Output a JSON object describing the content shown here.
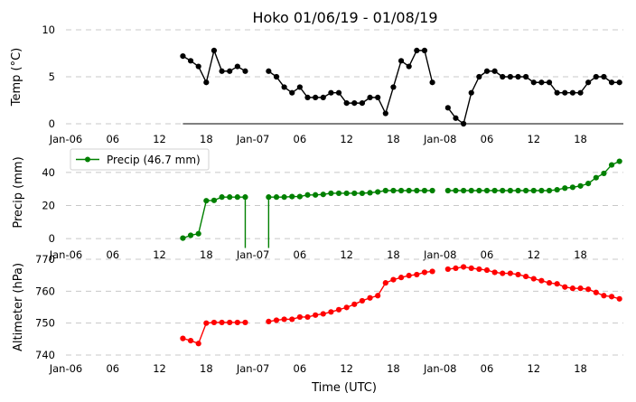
{
  "chart_data": {
    "title": "Hoko 01/06/19 - 01/08/19",
    "xlabel": "Time (UTC)",
    "x_ticks": [
      "Jan-06",
      "06",
      "12",
      "18",
      "Jan-07",
      "06",
      "12",
      "18",
      "Jan-08",
      "06",
      "12",
      "18"
    ],
    "x_tick_hours": [
      0,
      6,
      12,
      18,
      24,
      30,
      36,
      42,
      48,
      54,
      60,
      66
    ],
    "xlim_hours": [
      0,
      71.5
    ],
    "panels": [
      {
        "type": "line",
        "ylabel": "Temp (°C)",
        "ylim": [
          0,
          10
        ],
        "y_ticks": [
          0,
          5,
          10
        ],
        "color": "#000000",
        "grid": true,
        "series": [
          {
            "values": [
              [
                15,
                7.2
              ],
              [
                16,
                6.7
              ],
              [
                17,
                6.1
              ],
              [
                18,
                4.4
              ],
              [
                19,
                7.8
              ],
              [
                20,
                5.6
              ],
              [
                21,
                5.6
              ],
              [
                22,
                6.1
              ],
              [
                23,
                5.6
              ],
              [
                26,
                5.6
              ],
              [
                27,
                5.0
              ],
              [
                28,
                3.9
              ],
              [
                29,
                3.3
              ],
              [
                30,
                3.9
              ],
              [
                31,
                2.8
              ],
              [
                32,
                2.8
              ],
              [
                33,
                2.8
              ],
              [
                34,
                3.3
              ],
              [
                35,
                3.3
              ],
              [
                36,
                2.2
              ],
              [
                37,
                2.2
              ],
              [
                38,
                2.2
              ],
              [
                39,
                2.8
              ],
              [
                40,
                2.8
              ],
              [
                41,
                1.1
              ],
              [
                42,
                3.9
              ],
              [
                43,
                6.7
              ],
              [
                44,
                6.1
              ],
              [
                45,
                7.8
              ],
              [
                46,
                7.8
              ],
              [
                47,
                4.4
              ],
              [
                49,
                1.7
              ],
              [
                50,
                0.6
              ],
              [
                51,
                0.0
              ],
              [
                52,
                3.3
              ],
              [
                53,
                5.0
              ],
              [
                54,
                5.6
              ],
              [
                55,
                5.6
              ],
              [
                56,
                5.0
              ],
              [
                57,
                5.0
              ],
              [
                58,
                5.0
              ],
              [
                59,
                5.0
              ],
              [
                60,
                4.4
              ],
              [
                61,
                4.4
              ],
              [
                62,
                4.4
              ],
              [
                63,
                3.3
              ],
              [
                64,
                3.3
              ],
              [
                65,
                3.3
              ],
              [
                66,
                3.3
              ],
              [
                67,
                4.4
              ],
              [
                68,
                5.0
              ],
              [
                69,
                5.0
              ],
              [
                70,
                4.4
              ],
              [
                71,
                4.4
              ]
            ]
          }
        ]
      },
      {
        "type": "line",
        "ylabel": "Precip (mm)",
        "ylim": [
          -4,
          50
        ],
        "y_ticks": [
          0,
          20,
          40
        ],
        "color": "#008000",
        "grid": true,
        "legend": {
          "label": "Precip (46.7 mm)",
          "placement": "top-left"
        },
        "series": [
          {
            "values": [
              [
                15,
                0.3
              ],
              [
                16,
                2.0
              ],
              [
                17,
                3.0
              ],
              [
                18,
                22.9
              ],
              [
                19,
                23.1
              ],
              [
                20,
                25.1
              ],
              [
                21,
                25.1
              ],
              [
                22,
                25.1
              ],
              [
                23,
                25.1
              ],
              [
                26,
                25.1
              ],
              [
                27,
                25.1
              ],
              [
                28,
                25.1
              ],
              [
                29,
                25.4
              ],
              [
                30,
                25.4
              ],
              [
                31,
                26.4
              ],
              [
                32,
                26.4
              ],
              [
                33,
                26.7
              ],
              [
                34,
                27.4
              ],
              [
                35,
                27.4
              ],
              [
                36,
                27.4
              ],
              [
                37,
                27.4
              ],
              [
                38,
                27.4
              ],
              [
                39,
                27.7
              ],
              [
                40,
                28.2
              ],
              [
                41,
                29.0
              ],
              [
                42,
                29.0
              ],
              [
                43,
                29.0
              ],
              [
                44,
                29.0
              ],
              [
                45,
                29.0
              ],
              [
                46,
                29.0
              ],
              [
                47,
                29.0
              ],
              [
                49,
                29.0
              ],
              [
                50,
                29.0
              ],
              [
                51,
                29.0
              ],
              [
                52,
                29.0
              ],
              [
                53,
                29.0
              ],
              [
                54,
                29.0
              ],
              [
                55,
                29.0
              ],
              [
                56,
                29.0
              ],
              [
                57,
                29.0
              ],
              [
                58,
                29.0
              ],
              [
                59,
                29.0
              ],
              [
                60,
                29.0
              ],
              [
                61,
                29.0
              ],
              [
                62,
                29.0
              ],
              [
                63,
                29.5
              ],
              [
                64,
                30.5
              ],
              [
                65,
                31.0
              ],
              [
                66,
                31.8
              ],
              [
                67,
                33.3
              ],
              [
                68,
                36.8
              ],
              [
                69,
                39.4
              ],
              [
                70,
                44.5
              ],
              [
                71,
                46.7
              ]
            ],
            "dropouts": [
              23,
              26
            ]
          }
        ]
      },
      {
        "type": "line",
        "ylabel": "Altimeter (hPa)",
        "ylim": [
          740,
          770
        ],
        "y_ticks": [
          740,
          750,
          760,
          770
        ],
        "color": "#ff0000",
        "grid": true,
        "series": [
          {
            "values": [
              [
                15,
                745.2
              ],
              [
                16,
                744.5
              ],
              [
                17,
                743.6
              ],
              [
                18,
                750.0
              ],
              [
                19,
                750.2
              ],
              [
                20,
                750.2
              ],
              [
                21,
                750.2
              ],
              [
                22,
                750.2
              ],
              [
                23,
                750.2
              ],
              [
                26,
                750.5
              ],
              [
                27,
                750.9
              ],
              [
                28,
                751.2
              ],
              [
                29,
                751.2
              ],
              [
                30,
                751.9
              ],
              [
                31,
                751.9
              ],
              [
                32,
                752.5
              ],
              [
                33,
                752.9
              ],
              [
                34,
                753.5
              ],
              [
                35,
                754.2
              ],
              [
                36,
                754.9
              ],
              [
                37,
                755.9
              ],
              [
                38,
                757.0
              ],
              [
                39,
                757.9
              ],
              [
                40,
                758.6
              ],
              [
                41,
                762.6
              ],
              [
                42,
                763.6
              ],
              [
                43,
                764.3
              ],
              [
                44,
                764.9
              ],
              [
                45,
                765.2
              ],
              [
                46,
                765.9
              ],
              [
                47,
                766.2
              ],
              [
                49,
                766.9
              ],
              [
                50,
                767.2
              ],
              [
                51,
                767.6
              ],
              [
                52,
                767.2
              ],
              [
                53,
                766.9
              ],
              [
                54,
                766.6
              ],
              [
                55,
                765.9
              ],
              [
                56,
                765.6
              ],
              [
                57,
                765.6
              ],
              [
                58,
                765.2
              ],
              [
                59,
                764.6
              ],
              [
                60,
                763.9
              ],
              [
                61,
                763.3
              ],
              [
                62,
                762.6
              ],
              [
                63,
                762.3
              ],
              [
                64,
                761.3
              ],
              [
                65,
                760.9
              ],
              [
                66,
                760.9
              ],
              [
                67,
                760.6
              ],
              [
                68,
                759.6
              ],
              [
                69,
                758.6
              ],
              [
                70,
                758.3
              ],
              [
                71,
                757.6
              ]
            ]
          }
        ]
      }
    ]
  }
}
